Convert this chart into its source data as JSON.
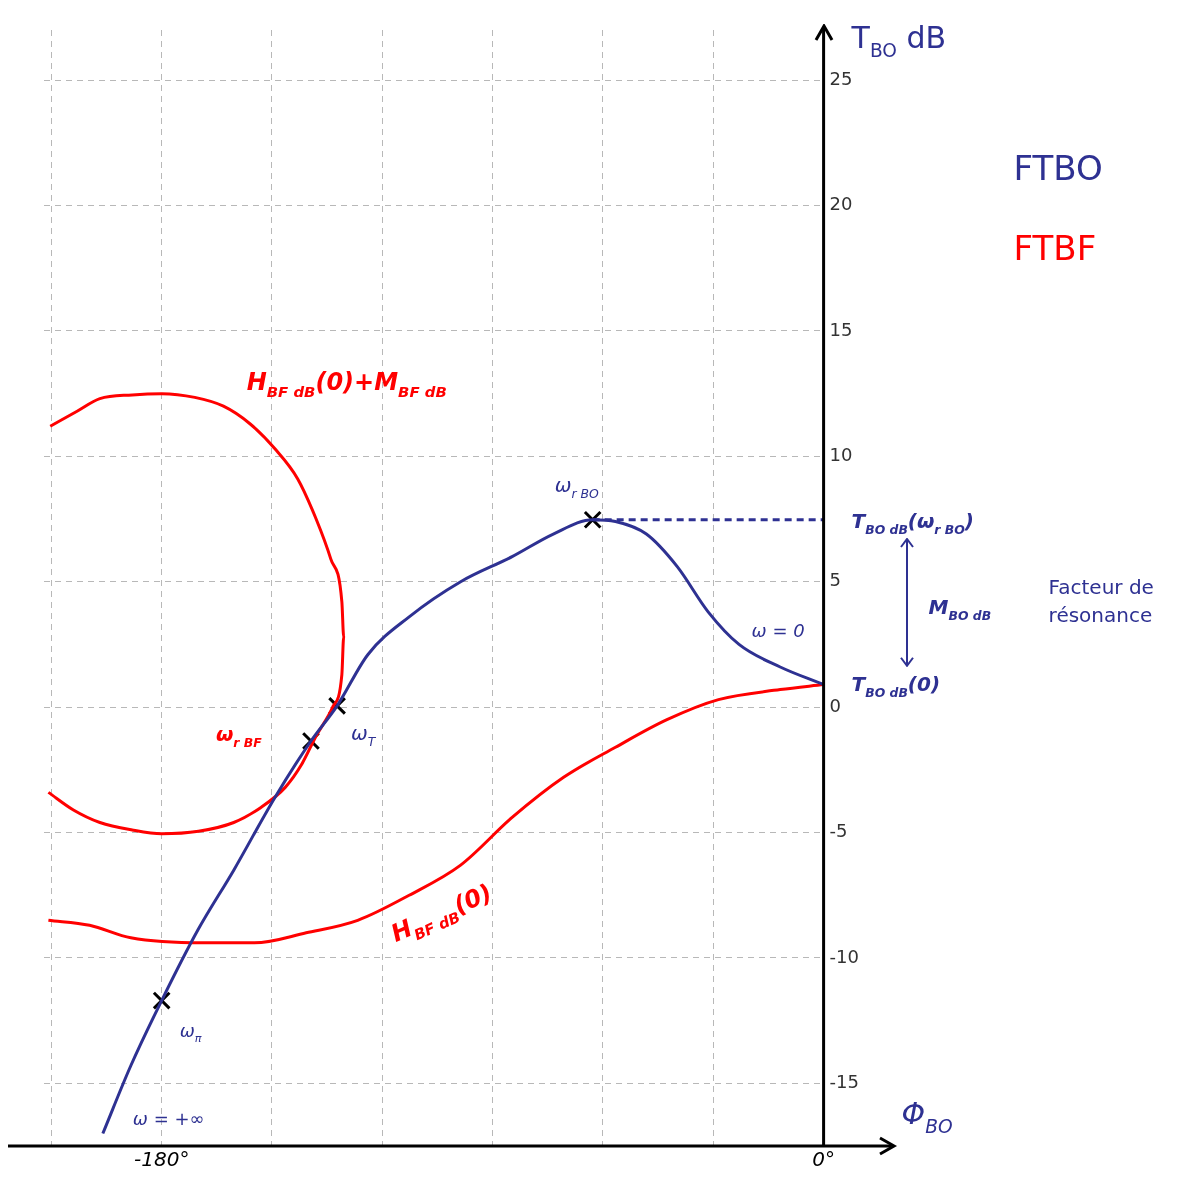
{
  "chart_data": {
    "type": "line",
    "xlabel": "Φ$_{BO}$",
    "ylabel": "T$_{BO}$ dB",
    "xlim": [
      -212,
      0
    ],
    "ylim": [
      -17.5,
      27
    ],
    "xticks": [
      {
        "value": -210,
        "label": null
      },
      {
        "value": -180,
        "label": "-180°"
      },
      {
        "value": -150,
        "label": null
      },
      {
        "value": -120,
        "label": null
      },
      {
        "value": -90,
        "label": null
      },
      {
        "value": -60,
        "label": null
      },
      {
        "value": -30,
        "label": null
      },
      {
        "value": 0,
        "label": "0°"
      }
    ],
    "yticks": [
      -15,
      -10,
      -5,
      0,
      5,
      10,
      15,
      20,
      25
    ],
    "grid": true,
    "legend": "right",
    "series": [
      {
        "name": "FTBO",
        "color": "#2e3192",
        "x": [
          0,
          -11.8,
          -23,
          -31.4,
          -39.8,
          -48.2,
          -56.6,
          -62.8,
          -73.5,
          -84.7,
          -98.7,
          -112.7,
          -123.9,
          -132.3,
          -139.4,
          -149.2,
          -160.4,
          -170.2,
          -180,
          -188.4,
          -196
        ],
        "values": [
          0.9,
          1.6,
          2.5,
          3.8,
          5.6,
          6.9,
          7.4,
          7.47,
          6.9,
          6.0,
          5.0,
          3.6,
          2.1,
          0.05,
          -1.35,
          -3.6,
          -6.5,
          -8.9,
          -11.7,
          -14.3,
          -17
        ]
      },
      {
        "name": "FTBF",
        "color": "#ff0000",
        "x": [
          -210.3,
          -203,
          -196.8,
          -188,
          -180,
          -171,
          -163.2,
          -156,
          -149.2,
          -143,
          -138,
          -134,
          -131,
          -130.5,
          -131,
          -133.5,
          -138,
          -142,
          -146.4,
          -153,
          -160.4,
          -170,
          -180,
          -188,
          -196.8,
          -204,
          -210.8
        ],
        "values": [
          11.2,
          11.8,
          12.3,
          12.45,
          12.5,
          12.35,
          12,
          11.3,
          10.3,
          9.1,
          7.5,
          5.9,
          4.2,
          2.8,
          1.3,
          0,
          -1.15,
          -2.3,
          -3.2,
          -4,
          -4.6,
          -4.95,
          -5.05,
          -4.9,
          -4.6,
          -4.1,
          -3.4
        ]
      },
      {
        "color": "#ff0000",
        "x": [
          0,
          -11.8,
          -28.6,
          -42.6,
          -56.6,
          -70.7,
          -84.7,
          -98.7,
          -112.7,
          -126.7,
          -140.7,
          -154.8,
          -168.8,
          -188.4,
          -199.6,
          -210.8
        ],
        "values": [
          0.9,
          0.7,
          0.3,
          -0.5,
          -1.6,
          -2.8,
          -4.4,
          -6.3,
          -7.5,
          -8.5,
          -9,
          -9.4,
          -9.4,
          -9.2,
          -8.7,
          -8.5
        ]
      },
      {
        "color": "#2e3192",
        "line_style": "dashed",
        "x": [
          -62.8,
          0
        ],
        "values": [
          7.47,
          7.47
        ]
      },
      {
        "type": "scatter",
        "color": "#000000",
        "marker": "cross",
        "x": [
          -62.8,
          -132.3,
          -139.4,
          -180
        ],
        "values": [
          7.47,
          0.05,
          -1.35,
          -11.7
        ]
      }
    ],
    "annotations": [
      {
        "text": "ω$_{r BO}$",
        "x": -62.8,
        "y": 7.47
      },
      {
        "text": "T$_{BO dB}$(ω$_{r BO}$)",
        "x": 0,
        "y": 7.47
      },
      "M$_{BO dB}$",
      "Facteur de résonance",
      {
        "text": "T$_{BO dB}$(0)",
        "x": 0,
        "y": 0.9
      },
      {
        "text": "ω = 0",
        "x": 0,
        "y": 0.9
      },
      "H$_{BF dB}$(0)+M$_{BF dB}$",
      {
        "text": "ω$_{r BF}$",
        "x": -139.4,
        "y": -1.35
      },
      {
        "text": "ω$_{T}$",
        "x": -132.3,
        "y": 0.05
      },
      {
        "text": "H$_{BF dB}$(0)",
        "x": -115,
        "y": -7.7
      },
      {
        "text": "ω$_{π}$",
        "x": -180,
        "y": -11.7
      },
      {
        "text": "ω = +∞",
        "x": -196,
        "y": -17
      }
    ]
  }
}
